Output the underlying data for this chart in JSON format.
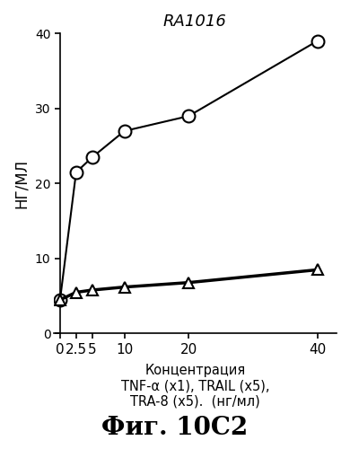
{
  "title": "RA1016",
  "xlabel_line1": "Концентрация",
  "xlabel_line2": "TNF-α (x1), TRAIL (x5),",
  "xlabel_line3": "TRA-8 (x5).  (нг/мл)",
  "ylabel": "НГ/МЛ",
  "fig_label": "Фиг. 10С2",
  "x": [
    0,
    2.5,
    5,
    10,
    20,
    40
  ],
  "y_circles": [
    4.5,
    21.5,
    23.5,
    27.0,
    29.0,
    39.0
  ],
  "y_triangles": [
    4.5,
    5.5,
    5.8,
    6.2,
    6.8,
    8.5
  ],
  "ylim": [
    0,
    40
  ],
  "yticks": [
    0,
    10,
    20,
    30,
    40
  ],
  "bg_color": "#ffffff",
  "line_color": "#000000",
  "marker_size_circle": 10,
  "marker_size_triangle": 8,
  "linewidth_circle": 1.5,
  "linewidth_triangle": 2.5
}
